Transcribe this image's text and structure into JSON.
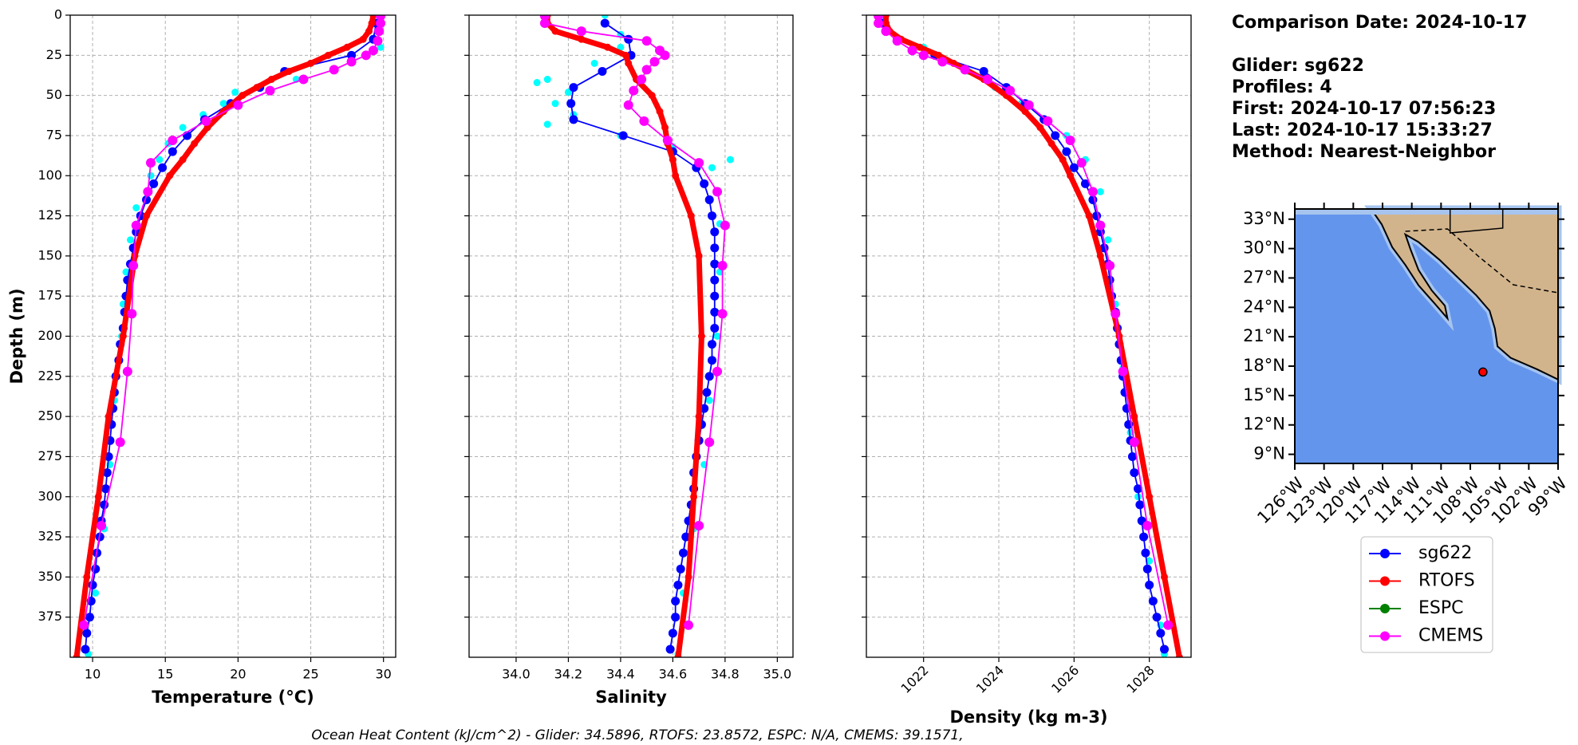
{
  "info": {
    "date": "Comparison Date: 2024-10-17",
    "lines": [
      "Glider: sg622",
      "Profiles: 4",
      "First: 2024-10-17 07:56:23",
      "Last: 2024-10-17 15:33:27",
      "Method: Nearest-Neighbor"
    ]
  },
  "footer": "Ocean Heat Content (kJ/cm^2) - Glider: 34.5896,  RTOFS: 23.8572,  ESPC: N/A,  CMEMS: 39.1571,",
  "legend": {
    "entries": [
      {
        "name": "sg622",
        "color": "#0000ff"
      },
      {
        "name": "RTOFS",
        "color": "#ff0000"
      },
      {
        "name": "ESPC",
        "color": "#008000"
      },
      {
        "name": "CMEMS",
        "color": "#ff00ff"
      }
    ]
  },
  "chart_data": [
    {
      "type": "line",
      "xlabel": "Temperature (°C)",
      "ylabel": "Depth (m)",
      "xlim": [
        8.46,
        30.84
      ],
      "xticks": [
        10,
        15,
        20,
        25,
        30
      ],
      "ylim": [
        0,
        400
      ],
      "yticks": [
        0,
        25,
        50,
        75,
        100,
        125,
        150,
        175,
        200,
        225,
        250,
        275,
        300,
        325,
        350,
        375
      ],
      "y_inverted": true,
      "ytick_labels": true,
      "grid": true,
      "series": [
        {
          "color": "#00ffff",
          "style": "scatter",
          "depth": [
            0,
            20,
            30,
            40,
            48,
            55,
            62,
            70,
            80,
            90,
            100,
            120,
            140,
            160,
            180,
            200,
            240,
            280,
            320,
            360,
            398
          ],
          "values": [
            29.9,
            29.8,
            25.0,
            24.0,
            19.8,
            19.0,
            17.6,
            16.2,
            15.2,
            14.6,
            14.0,
            13.0,
            12.6,
            12.3,
            12.1,
            12.0,
            11.5,
            11.2,
            10.8,
            10.2,
            9.7
          ]
        },
        {
          "name": "sg622",
          "color": "#0000ff",
          "style": "line",
          "depth": [
            5,
            15,
            25,
            35,
            45,
            55,
            65,
            75,
            85,
            95,
            105,
            115,
            125,
            135,
            145,
            155,
            165,
            175,
            185,
            195,
            205,
            215,
            225,
            235,
            245,
            255,
            265,
            275,
            285,
            295,
            305,
            315,
            325,
            335,
            345,
            355,
            365,
            375,
            385,
            395
          ],
          "values": [
            29.5,
            29.3,
            27.8,
            23.2,
            21.5,
            19.5,
            17.7,
            16.5,
            15.5,
            14.8,
            14.2,
            13.7,
            13.3,
            13.0,
            12.8,
            12.6,
            12.4,
            12.3,
            12.2,
            12.1,
            11.9,
            11.8,
            11.6,
            11.5,
            11.4,
            11.3,
            11.2,
            11.1,
            11.0,
            10.9,
            10.8,
            10.6,
            10.5,
            10.3,
            10.2,
            10.0,
            9.9,
            9.8,
            9.6,
            9.5
          ]
        },
        {
          "name": "RTOFS",
          "color": "#ff0000",
          "style": "thick",
          "depth": [
            0,
            5,
            10,
            15,
            20,
            25,
            30,
            35,
            40,
            45,
            50,
            60,
            70,
            80,
            90,
            100,
            125,
            150,
            200,
            250,
            300,
            350,
            400
          ],
          "values": [
            29.3,
            29.2,
            29.0,
            28.6,
            27.5,
            26.2,
            25.0,
            23.5,
            22.3,
            21.3,
            20.3,
            19.0,
            17.9,
            17.0,
            16.2,
            15.3,
            13.7,
            12.9,
            12.1,
            11.1,
            10.4,
            9.6,
            8.9
          ]
        },
        {
          "name": "CMEMS",
          "color": "#ff00ff",
          "style": "line",
          "depth": [
            0.5,
            5,
            10,
            16,
            22,
            25,
            29,
            34,
            40,
            47,
            56,
            66,
            78,
            92,
            110,
            131,
            156,
            186,
            222,
            266,
            318,
            380
          ],
          "values": [
            29.8,
            29.8,
            29.7,
            29.6,
            29.3,
            28.8,
            27.8,
            26.6,
            24.5,
            22.2,
            20.0,
            17.8,
            15.5,
            14.0,
            13.8,
            13.0,
            12.8,
            12.7,
            12.4,
            11.9,
            10.6,
            9.4
          ]
        }
      ]
    },
    {
      "type": "line",
      "xlabel": "Salinity",
      "xlim": [
        33.82,
        35.06
      ],
      "xticks": [
        {
          "value": 34,
          "label": "34.0"
        },
        34.2,
        34.4,
        34.6,
        34.8,
        {
          "value": 35,
          "label": "35.0"
        }
      ],
      "ylim": [
        0,
        400
      ],
      "yticks": [
        0,
        25,
        50,
        75,
        100,
        125,
        150,
        175,
        200,
        225,
        250,
        275,
        300,
        325,
        350,
        375
      ],
      "y_inverted": true,
      "ytick_labels": false,
      "grid": true,
      "series": [
        {
          "color": "#00ffff",
          "style": "scatter",
          "depth": [
            0,
            12,
            20,
            30,
            40,
            42,
            48,
            55,
            62,
            68,
            75,
            82,
            90,
            95,
            110,
            130,
            160,
            200,
            240,
            280,
            320,
            360,
            398
          ],
          "values": [
            34.34,
            34.4,
            34.4,
            34.3,
            34.12,
            34.08,
            34.2,
            34.15,
            34.22,
            34.12,
            34.4,
            34.6,
            34.82,
            34.75,
            34.77,
            34.78,
            34.78,
            34.77,
            34.74,
            34.72,
            34.68,
            34.64,
            34.62
          ]
        },
        {
          "name": "sg622",
          "color": "#0000ff",
          "style": "line",
          "depth": [
            5,
            15,
            25,
            35,
            45,
            55,
            65,
            75,
            85,
            95,
            105,
            115,
            125,
            135,
            145,
            155,
            165,
            175,
            185,
            195,
            205,
            215,
            225,
            235,
            245,
            255,
            265,
            275,
            285,
            295,
            305,
            315,
            325,
            335,
            345,
            355,
            365,
            375,
            385,
            395
          ],
          "values": [
            34.34,
            34.43,
            34.44,
            34.33,
            34.22,
            34.21,
            34.22,
            34.41,
            34.6,
            34.69,
            34.72,
            34.74,
            34.75,
            34.76,
            34.76,
            34.76,
            34.76,
            34.76,
            34.76,
            34.76,
            34.75,
            34.75,
            34.74,
            34.73,
            34.72,
            34.71,
            34.7,
            34.69,
            34.68,
            34.68,
            34.67,
            34.66,
            34.65,
            34.64,
            34.63,
            34.62,
            34.61,
            34.61,
            34.6,
            34.59
          ]
        },
        {
          "name": "RTOFS",
          "color": "#ff0000",
          "style": "thick",
          "depth": [
            0,
            5,
            10,
            15,
            20,
            25,
            30,
            40,
            50,
            60,
            70,
            80,
            90,
            100,
            125,
            150,
            200,
            250,
            300,
            350,
            400
          ],
          "values": [
            34.12,
            34.12,
            34.15,
            34.25,
            34.35,
            34.42,
            34.43,
            34.46,
            34.52,
            34.55,
            34.57,
            34.58,
            34.6,
            34.61,
            34.67,
            34.7,
            34.71,
            34.7,
            34.68,
            34.66,
            34.62
          ]
        },
        {
          "name": "CMEMS",
          "color": "#ff00ff",
          "style": "line",
          "depth": [
            0.5,
            5,
            10,
            16,
            22,
            25,
            29,
            34,
            40,
            47,
            56,
            66,
            78,
            92,
            110,
            131,
            156,
            186,
            222,
            266,
            318,
            380
          ],
          "values": [
            34.11,
            34.11,
            34.25,
            34.5,
            34.55,
            34.57,
            34.53,
            34.5,
            34.48,
            34.45,
            34.43,
            34.49,
            34.58,
            34.7,
            34.77,
            34.8,
            34.79,
            34.79,
            34.77,
            34.74,
            34.7,
            34.66
          ]
        }
      ]
    },
    {
      "type": "line",
      "xlabel": "Density (kg m-3)",
      "xlim": [
        1020.48,
        1029.11
      ],
      "xticks": [
        1022,
        1024,
        1026,
        1028
      ],
      "xtick_rotation": -45,
      "ylim": [
        0,
        400
      ],
      "yticks": [
        0,
        25,
        50,
        75,
        100,
        125,
        150,
        175,
        200,
        225,
        250,
        275,
        300,
        325,
        350,
        375
      ],
      "y_inverted": true,
      "ytick_labels": false,
      "grid": true,
      "series": [
        {
          "color": "#00ffff",
          "style": "scatter",
          "depth": [
            0,
            20,
            35,
            45,
            55,
            65,
            75,
            90,
            110,
            140,
            180,
            220,
            260,
            300,
            340,
            380,
            398
          ],
          "values": [
            1020.9,
            1022.0,
            1023.2,
            1023.9,
            1024.6,
            1025.2,
            1025.8,
            1026.3,
            1026.7,
            1026.9,
            1027.1,
            1027.3,
            1027.5,
            1027.7,
            1028.0,
            1028.3,
            1028.4
          ]
        },
        {
          "name": "sg622",
          "color": "#0000ff",
          "style": "line",
          "depth": [
            5,
            15,
            25,
            35,
            45,
            55,
            65,
            75,
            85,
            95,
            105,
            115,
            125,
            135,
            145,
            155,
            165,
            175,
            185,
            195,
            205,
            215,
            225,
            235,
            245,
            255,
            265,
            275,
            285,
            295,
            305,
            315,
            325,
            335,
            345,
            355,
            365,
            375,
            385,
            395
          ],
          "values": [
            1020.9,
            1021.3,
            1022.3,
            1023.6,
            1024.2,
            1024.7,
            1025.2,
            1025.5,
            1025.8,
            1026.0,
            1026.3,
            1026.5,
            1026.6,
            1026.7,
            1026.8,
            1026.9,
            1026.95,
            1027.0,
            1027.1,
            1027.15,
            1027.2,
            1027.25,
            1027.3,
            1027.35,
            1027.4,
            1027.45,
            1027.5,
            1027.55,
            1027.6,
            1027.7,
            1027.75,
            1027.8,
            1027.85,
            1027.9,
            1027.95,
            1028.0,
            1028.1,
            1028.2,
            1028.3,
            1028.4
          ]
        },
        {
          "name": "RTOFS",
          "color": "#ff0000",
          "style": "thick",
          "depth": [
            0,
            5,
            10,
            15,
            20,
            25,
            30,
            40,
            50,
            60,
            70,
            80,
            90,
            100,
            125,
            150,
            200,
            250,
            300,
            350,
            400
          ],
          "values": [
            1021.0,
            1021.0,
            1021.1,
            1021.4,
            1021.9,
            1022.4,
            1022.8,
            1023.6,
            1024.2,
            1024.7,
            1025.1,
            1025.4,
            1025.7,
            1025.9,
            1026.4,
            1026.7,
            1027.2,
            1027.6,
            1028.0,
            1028.4,
            1028.8
          ]
        },
        {
          "name": "CMEMS",
          "color": "#ff00ff",
          "style": "line",
          "depth": [
            0.5,
            5,
            10,
            16,
            22,
            25,
            29,
            34,
            40,
            47,
            56,
            66,
            78,
            92,
            110,
            131,
            156,
            186,
            222,
            266,
            318,
            380
          ],
          "values": [
            1020.8,
            1020.8,
            1021.0,
            1021.3,
            1021.7,
            1022.0,
            1022.5,
            1023.1,
            1023.7,
            1024.3,
            1024.8,
            1025.3,
            1025.9,
            1026.2,
            1026.5,
            1026.7,
            1026.95,
            1027.1,
            1027.3,
            1027.6,
            1027.95,
            1028.5
          ]
        }
      ]
    },
    {
      "type": "map",
      "xlim": [
        -126,
        -99
      ],
      "ylim": [
        8.07,
        34.04
      ],
      "xticks": [
        {
          "value": -126,
          "label": "126°W"
        },
        {
          "value": -123,
          "label": "123°W"
        },
        {
          "value": -120,
          "label": "120°W"
        },
        {
          "value": -117,
          "label": "117°W"
        },
        {
          "value": -114,
          "label": "114°W"
        },
        {
          "value": -111,
          "label": "111°W"
        },
        {
          "value": -108,
          "label": "108°W"
        },
        {
          "value": -105,
          "label": "105°W"
        },
        {
          "value": -102,
          "label": "102°W"
        },
        {
          "value": -99,
          "label": "99°W"
        }
      ],
      "yticks": [
        {
          "value": 9,
          "label": "9°N"
        },
        {
          "value": 12,
          "label": "12°N"
        },
        {
          "value": 15,
          "label": "15°N"
        },
        {
          "value": 18,
          "label": "18°N"
        },
        {
          "value": 21,
          "label": "21°N"
        },
        {
          "value": 24,
          "label": "24°N"
        },
        {
          "value": 27,
          "label": "27°N"
        },
        {
          "value": 30,
          "label": "30°N"
        },
        {
          "value": 33,
          "label": "33°N"
        }
      ],
      "point": {
        "x": -106.7,
        "y": 17.4,
        "color": "#ff0000"
      }
    }
  ]
}
